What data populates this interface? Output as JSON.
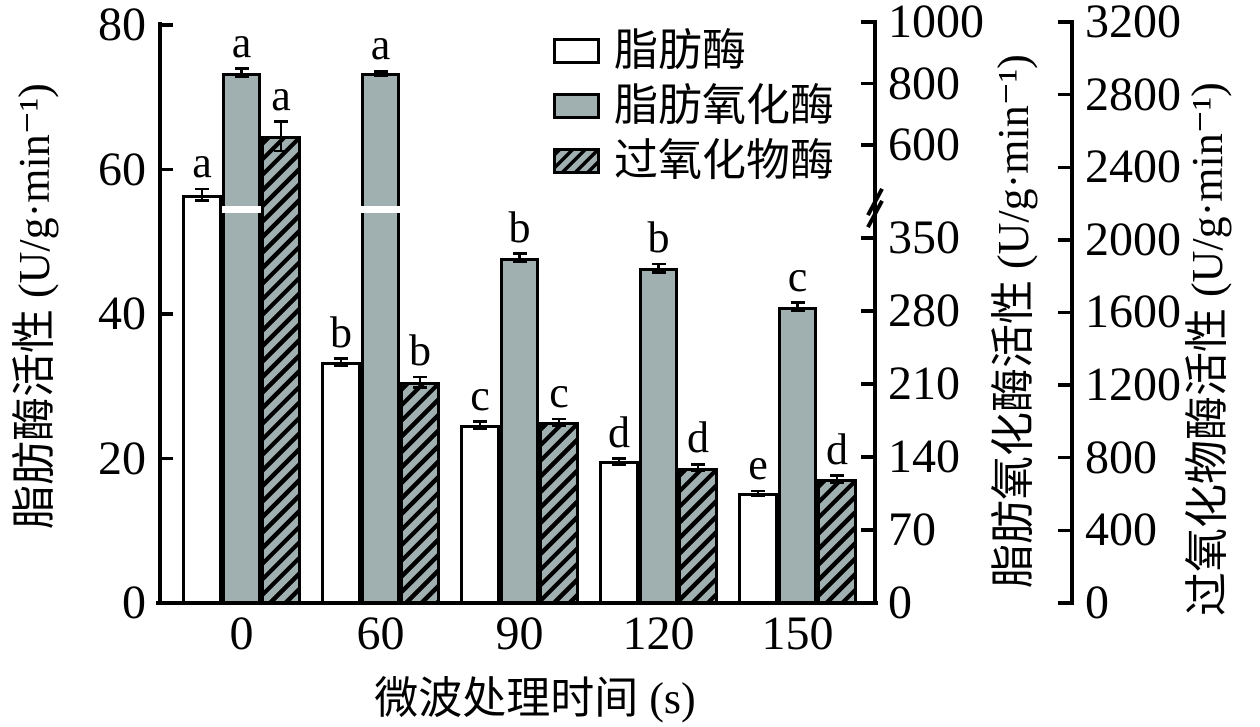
{
  "chart_data": {
    "type": "bar",
    "xlabel": "微波处理时间 (s)",
    "categories": [
      "0",
      "60",
      "90",
      "120",
      "150"
    ],
    "series": [
      {
        "name": "脂肪酶",
        "axis": "left",
        "style": "white",
        "values": [
          56.5,
          33.3,
          24.6,
          19.6,
          15.2
        ],
        "errors": [
          0.8,
          0.5,
          0.5,
          0.4,
          0.3
        ],
        "sig_letters": [
          "a",
          "b",
          "c",
          "d",
          "e"
        ]
      },
      {
        "name": "脂肪氧化酶",
        "axis": "right1",
        "style": "gray",
        "values": [
          835,
          833,
          331,
          321,
          284
        ],
        "errors": [
          13,
          7,
          4,
          4,
          4
        ],
        "sig_letters": [
          "a",
          "a",
          "b",
          "b",
          "c"
        ]
      },
      {
        "name": "过氧化物酶",
        "axis": "right2",
        "style": "hatch",
        "values": [
          2570,
          1215,
          995,
          745,
          683
        ],
        "errors": [
          80,
          30,
          18,
          18,
          18
        ],
        "sig_letters": [
          "a",
          "b",
          "c",
          "d",
          "d"
        ]
      }
    ],
    "axes": {
      "left": {
        "label": "脂肪酶活性 (U/g·min⁻¹)",
        "ticks": [
          0,
          20,
          40,
          60,
          80
        ],
        "range": [
          0,
          80
        ]
      },
      "right1": {
        "label": "脂肪氧化酶活性 (U/g·min⁻¹)",
        "lower_ticks": [
          0,
          70,
          140,
          210,
          280,
          350
        ],
        "upper_ticks": [
          600,
          800,
          1000
        ],
        "lower_range": [
          0,
          350
        ],
        "upper_range": [
          600,
          1000
        ],
        "has_break": true
      },
      "right2": {
        "label": "过氧化物酶活性 (U/g·min⁻¹)",
        "ticks": [
          0,
          400,
          800,
          1200,
          1600,
          2000,
          2400,
          2800,
          3200
        ],
        "range": [
          0,
          3200
        ]
      }
    },
    "legend": {
      "position": "top-center",
      "items": [
        "脂肪酶",
        "脂肪氧化酶",
        "过氧化物酶"
      ]
    },
    "colors": {
      "bar_gray": "#a0b0b1",
      "bar_white": "#ffffff",
      "outline": "#000000",
      "background": "#ffffff"
    },
    "grid": false
  }
}
